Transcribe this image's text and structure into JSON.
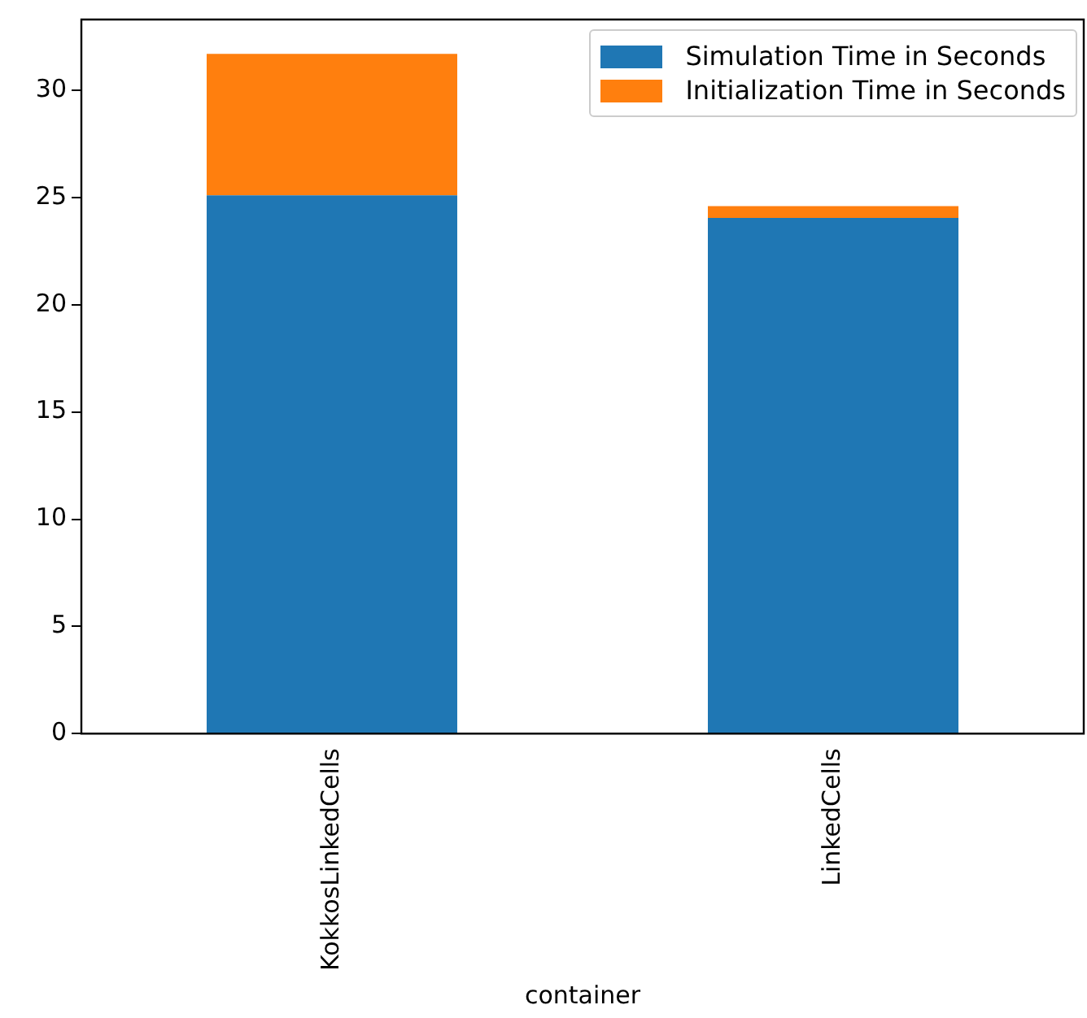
{
  "chart_data": {
    "type": "bar",
    "xlabel": "container",
    "categories": [
      "KokkosLinkedCells",
      "LinkedCells"
    ],
    "stacked": true,
    "series": [
      {
        "name": "Simulation Time in Seconds",
        "color": "#1f77b4",
        "values": [
          25.1,
          24.05
        ]
      },
      {
        "name": "Initialization Time in Seconds",
        "color": "#ff7f0e",
        "values": [
          6.6,
          0.55
        ]
      }
    ],
    "ylim": [
      0,
      33.3
    ],
    "yticks": [
      0,
      5,
      10,
      15,
      20,
      25,
      30
    ],
    "grid": false,
    "legend": "top right"
  }
}
